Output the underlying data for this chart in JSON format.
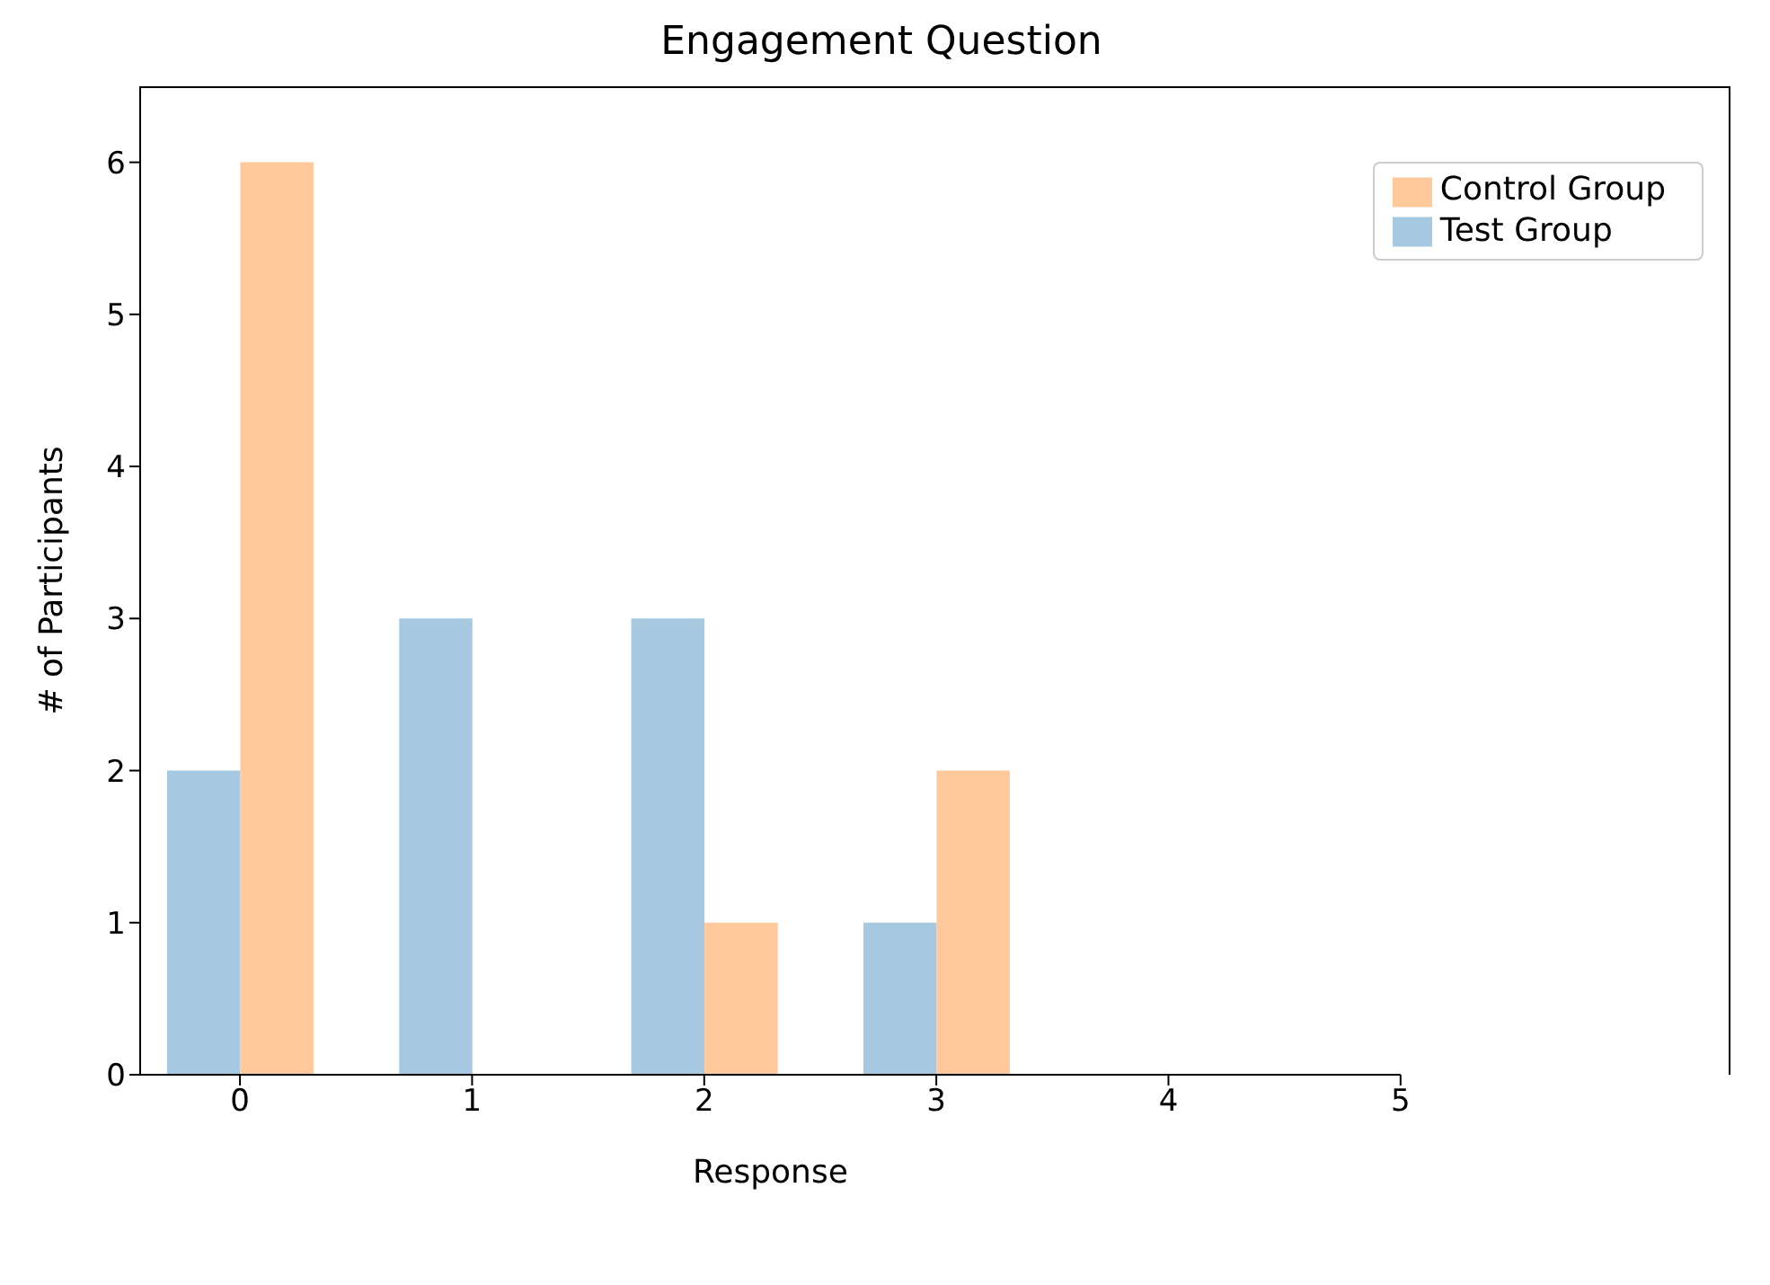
{
  "chart_data": {
    "type": "bar",
    "title": "Engagement Question",
    "xlabel": "Response",
    "ylabel": "# of Participants",
    "x": [
      0,
      1,
      2,
      3
    ],
    "series": [
      {
        "name": "Test Group",
        "color": "#a6c8e0",
        "values": [
          2,
          3,
          3,
          1
        ]
      },
      {
        "name": "Control Group",
        "color": "#ffc99b",
        "values": [
          6,
          0,
          1,
          2
        ]
      }
    ],
    "xlim": [
      -0.43,
      5
    ],
    "xticks": [
      0,
      1,
      2,
      3,
      4,
      5
    ],
    "ylim": [
      0,
      6.5
    ],
    "yticks": [
      0,
      1,
      2,
      3,
      4,
      5,
      6
    ],
    "legend": "top right",
    "grid": false
  }
}
